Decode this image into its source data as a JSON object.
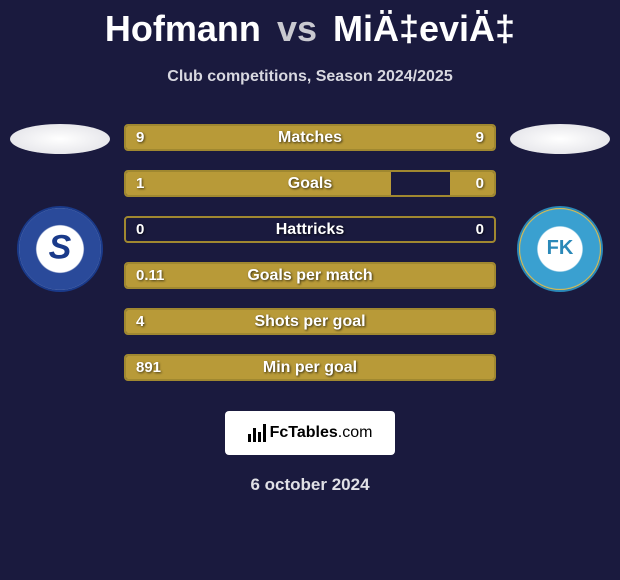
{
  "title": {
    "player1": "Hofmann",
    "vs": "vs",
    "player2": "MiÄ‡eviÄ‡"
  },
  "subtitle": "Club competitions, Season 2024/2025",
  "stats": [
    {
      "label": "Matches",
      "left_value": "9",
      "right_value": "9",
      "left_fill_pct": 50,
      "right_fill_pct": 50
    },
    {
      "label": "Goals",
      "left_value": "1",
      "right_value": "0",
      "left_fill_pct": 72,
      "right_fill_pct": 12
    },
    {
      "label": "Hattricks",
      "left_value": "0",
      "right_value": "0",
      "left_fill_pct": 0,
      "right_fill_pct": 0
    },
    {
      "label": "Goals per match",
      "left_value": "0.11",
      "right_value": "",
      "left_fill_pct": 100,
      "right_fill_pct": 0
    },
    {
      "label": "Shots per goal",
      "left_value": "4",
      "right_value": "",
      "left_fill_pct": 100,
      "right_fill_pct": 0
    },
    {
      "label": "Min per goal",
      "left_value": "891",
      "right_value": "",
      "left_fill_pct": 100,
      "right_fill_pct": 0
    }
  ],
  "logo": {
    "name": "FcTables",
    "domain": ".com"
  },
  "date": "6 october 2024",
  "colors": {
    "background": "#1a1a3e",
    "bar_border": "#a08830",
    "bar_fill": "#b89a38",
    "title_text": "#ffffff",
    "subtitle_text": "#d8d8e0"
  }
}
